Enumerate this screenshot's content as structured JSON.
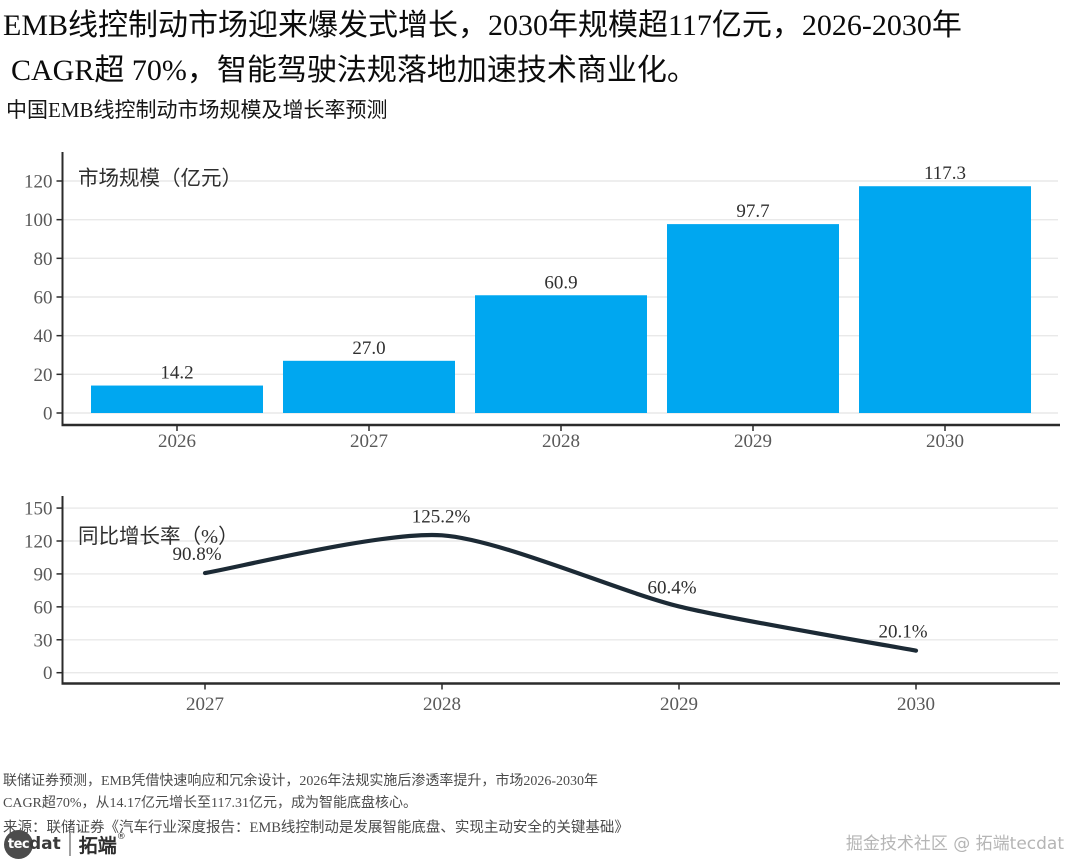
{
  "header": {
    "title_line1": "EMB线控制动市场迎来爆发式增长，2030年规模超117亿元，2026-2030年",
    "title_line2": "CAGR超 70%，智能驾驶法规落地加速技术商业化。",
    "subtitle": "中国EMB线控制动市场规模及增长率预测"
  },
  "chart_data": [
    {
      "type": "bar",
      "title": "市场规模（亿元）",
      "categories": [
        "2026",
        "2027",
        "2028",
        "2029",
        "2030"
      ],
      "values": [
        14.2,
        27.0,
        60.9,
        97.7,
        117.3
      ],
      "value_labels": [
        "14.2",
        "27.0",
        "60.9",
        "97.7",
        "117.3"
      ],
      "xlabel": "",
      "ylabel": "市场规模（亿元）",
      "ylim": [
        0,
        135
      ],
      "yticks": [
        0,
        20,
        40,
        60,
        80,
        100,
        120
      ],
      "grid": true,
      "legend": "none",
      "bar_color": "#00a7f0"
    },
    {
      "type": "line",
      "title": "同比增长率（%）",
      "categories": [
        "2027",
        "2028",
        "2029",
        "2030"
      ],
      "values": [
        90.8,
        125.2,
        60.4,
        20.1
      ],
      "value_labels": [
        "90.8%",
        "125.2%",
        "60.4%",
        "20.1%"
      ],
      "xlabel": "",
      "ylabel": "同比增长率（%）",
      "ylim": [
        0,
        161
      ],
      "yticks": [
        0,
        30,
        60,
        90,
        120,
        150
      ],
      "grid": true,
      "legend": "none",
      "line_color": "#1c2a35"
    }
  ],
  "footer": {
    "note_lines": [
      "联储证券预测，EMB凭借快速响应和冗余设计，2026年法规实施后渗透率提升，市场2026-2030年",
      "CAGR超70%，从14.17亿元增长至117.31亿元，成为智能底盘核心。"
    ],
    "source": "来源：联储证券《汽车行业深度报告：EMB线控制动是发展智能底盘、实现主动安全的关键基础》"
  },
  "branding": {
    "logo_tec": "tec",
    "logo_dat": "dat",
    "logo_cn": "拓端",
    "logo_reg": "®",
    "watermark": "掘金技术社区 @ 拓端tecdat"
  },
  "colors": {
    "bar": "#00a7f0",
    "line": "#1c2a35",
    "axis": "#2b2b2b",
    "grid": "#e9e9e9",
    "tick_label": "#595959",
    "value_label": "#2f2f2f",
    "title": "#0b0b0b",
    "note": "#4b4b4b",
    "watermark": "#b5b5b5"
  }
}
